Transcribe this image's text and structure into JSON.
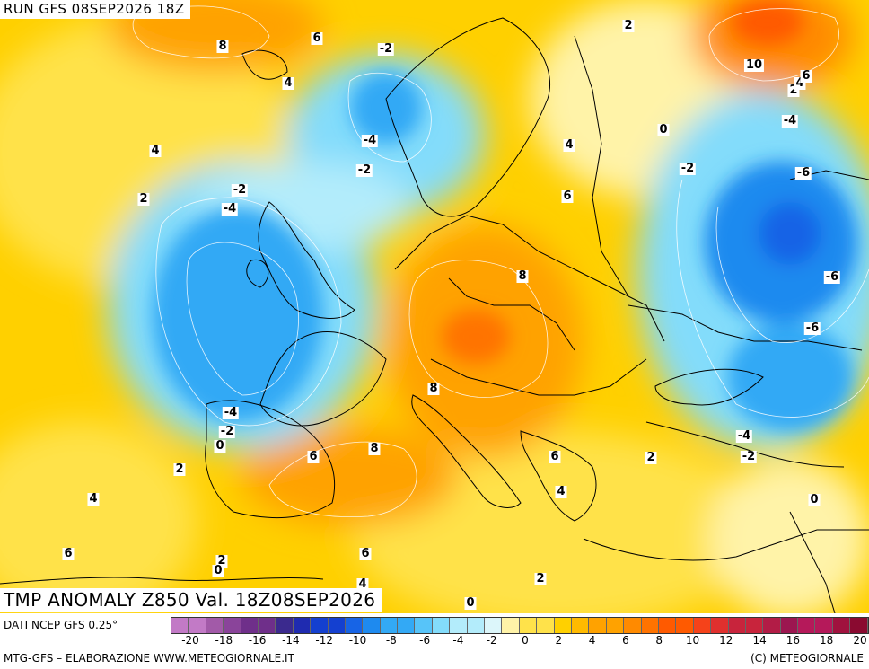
{
  "header": {
    "run_label": "RUN GFS 08SEP2026 18Z",
    "map_title": "TMP ANOMALY Z850 Val. 18Z08SEP2026"
  },
  "legend": {
    "source": "DATI NCEP GFS 0.25°",
    "credit_left": "MTG-GFS – ELABORAZIONE WWW.METEOGIORNALE.IT",
    "credit_right": "(C) METEOGIORNALE",
    "tick_labels": [
      "-20",
      "-18",
      "-16",
      "-14",
      "-12",
      "-10",
      "-8",
      "-6",
      "-4",
      "-2",
      "0",
      "2",
      "4",
      "6",
      "8",
      "10",
      "12",
      "14",
      "16",
      "18",
      "20"
    ],
    "swatches": [
      "#c27ac6",
      "#a25aa8",
      "#8a449a",
      "#6f2f8a",
      "#3b2a8e",
      "#1f2bb0",
      "#1440d0",
      "#1764e6",
      "#1e8aef",
      "#33a9f5",
      "#57c4f9",
      "#83dcfb",
      "#b3ecfb",
      "#dcf6fa",
      "#fff3a8",
      "#ffe24a",
      "#ffd000",
      "#ffba00",
      "#ffa200",
      "#ff8a00",
      "#ff7300",
      "#ff5a00",
      "#f5421a",
      "#e0302e",
      "#c8243c",
      "#b21c46",
      "#9c1650",
      "#b5195a",
      "#a0123e",
      "#8a0a30"
    ]
  },
  "contour_labels": [
    {
      "text": "8"
    },
    {
      "text": "6"
    },
    {
      "text": "4"
    },
    {
      "text": "-2"
    },
    {
      "text": "-4"
    },
    {
      "text": "-2"
    },
    {
      "text": "4"
    },
    {
      "text": "2"
    },
    {
      "text": "-2"
    },
    {
      "text": "-4"
    },
    {
      "text": "2"
    },
    {
      "text": "4"
    },
    {
      "text": "6"
    },
    {
      "text": "0"
    },
    {
      "text": "-2"
    },
    {
      "text": "10"
    },
    {
      "text": "2"
    },
    {
      "text": "4"
    },
    {
      "text": "6"
    },
    {
      "text": "-4"
    },
    {
      "text": "-6"
    },
    {
      "text": "-6"
    },
    {
      "text": "-6"
    },
    {
      "text": "8"
    },
    {
      "text": "8"
    },
    {
      "text": "-4"
    },
    {
      "text": "-2"
    },
    {
      "text": "0"
    },
    {
      "text": "2"
    },
    {
      "text": "6"
    },
    {
      "text": "8"
    },
    {
      "text": "6"
    },
    {
      "text": "4"
    },
    {
      "text": "2"
    },
    {
      "text": "-4"
    },
    {
      "text": "-2"
    },
    {
      "text": "0"
    },
    {
      "text": "4"
    },
    {
      "text": "6"
    },
    {
      "text": "2"
    },
    {
      "text": "0"
    },
    {
      "text": "6"
    },
    {
      "text": "4"
    },
    {
      "text": "2"
    },
    {
      "text": "0"
    }
  ]
}
